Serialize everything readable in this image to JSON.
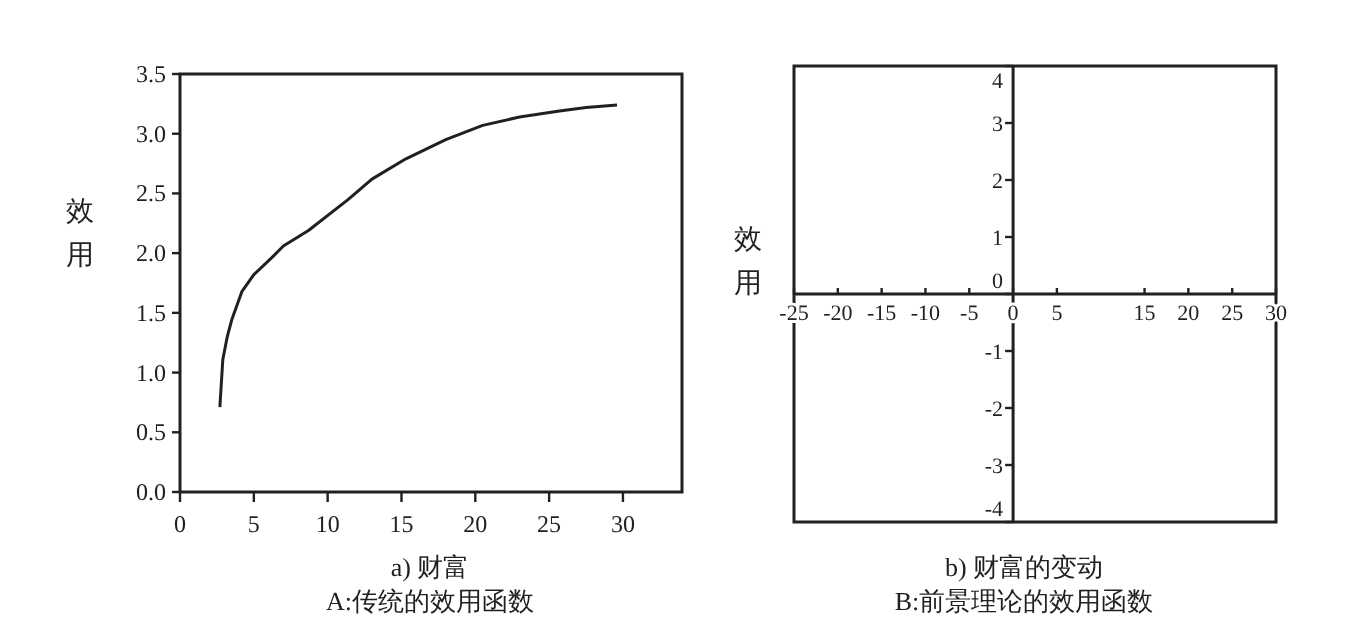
{
  "chart_data": [
    {
      "type": "line",
      "title": "A:传统的效用函数",
      "xlabel": "a) 财富",
      "ylabel": "效用",
      "xlim": [
        0,
        34
      ],
      "ylim": [
        0,
        3.5
      ],
      "xticks": [
        0,
        5,
        10,
        15,
        20,
        25,
        30
      ],
      "yticks": [
        {
          "value": 0,
          "label": "0.0"
        },
        {
          "value": 0.5,
          "label": "0.5"
        },
        {
          "value": 1,
          "label": "1.0"
        },
        {
          "value": 1.5,
          "label": "1.5"
        },
        {
          "value": 2,
          "label": "2.0"
        },
        {
          "value": 2.5,
          "label": "2.5"
        },
        {
          "value": 3,
          "label": "3.0"
        },
        {
          "value": 3.5,
          "label": "3.5"
        }
      ],
      "grid": false,
      "series": [
        {
          "color": "#231f20",
          "x": [
            2.7,
            2.9,
            3.2,
            3.5,
            4.2,
            5,
            6.2,
            7,
            8.7,
            11.4,
            13,
            15.3,
            18,
            20.5,
            23,
            25.7,
            27.5,
            29.6
          ],
          "values": [
            0.71,
            1.11,
            1.3,
            1.44,
            1.68,
            1.82,
            1.96,
            2.06,
            2.19,
            2.45,
            2.62,
            2.79,
            2.95,
            3.07,
            3.14,
            3.19,
            3.22,
            3.24
          ]
        }
      ]
    },
    {
      "type": "line",
      "title": "B:前景理论的效用函数",
      "xlabel": "b) 财富的变动",
      "ylabel": "效用",
      "xlim": [
        -25,
        30
      ],
      "ylim": [
        -4,
        4
      ],
      "xticks": [
        -25,
        -20,
        -15,
        -10,
        -5,
        0,
        5,
        15,
        20,
        25,
        30
      ],
      "yticks": [
        -4,
        -3,
        -2,
        -1,
        0,
        1,
        2,
        3,
        4
      ],
      "grid": false
    }
  ]
}
